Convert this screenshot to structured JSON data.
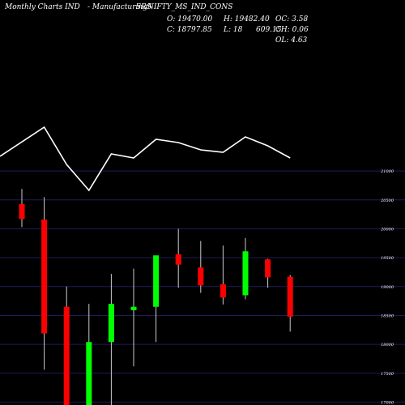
{
  "header": {
    "site": "Monthly Charts IND",
    "title": "- ManufacturingNIFTY_MS_IND_CONS",
    "overlay": "SRS",
    "open": "O: 19470.00",
    "high": "H: 19482.40",
    "close": "C: 18797.85",
    "low": "L: 18",
    "low_overlay": "609.15",
    "oc": "OC: 3.58",
    "ch": "CH: 0.06",
    "ol": "OL: 4.63"
  },
  "colors": {
    "background": "#000000",
    "up": "#00ff00",
    "down": "#ff0000",
    "grid": "#1c1c5a",
    "line": "#ffffff",
    "wick": "#cccccc"
  },
  "chart_data": [
    {
      "type": "line",
      "x": [
        1,
        2,
        3,
        4,
        5,
        6,
        7,
        8,
        9,
        10,
        11,
        12,
        13
      ],
      "values": [
        123,
        87,
        133,
        165,
        120,
        125,
        102,
        106,
        115,
        118,
        99,
        110,
        125
      ]
    },
    {
      "type": "candlestick",
      "yticks": [
        21000,
        20500,
        20000,
        19500,
        19000,
        18500,
        18000,
        17500,
        17000
      ],
      "ylim": [
        16950,
        21100
      ],
      "candles": [
        {
          "x": 1,
          "open": 20430,
          "high": 20690,
          "low": 20030,
          "close": 20170
        },
        {
          "x": 2,
          "open": 20160,
          "high": 20550,
          "low": 17560,
          "close": 18190
        },
        {
          "x": 3,
          "open": 18650,
          "high": 19000,
          "low": 16950,
          "close": 16950
        },
        {
          "x": 4,
          "open": 16950,
          "high": 18700,
          "low": 16950,
          "close": 18040
        },
        {
          "x": 5,
          "open": 18040,
          "high": 19220,
          "low": 16950,
          "close": 18700
        },
        {
          "x": 6,
          "open": 18590,
          "high": 19310,
          "low": 17620,
          "close": 18650
        },
        {
          "x": 7,
          "open": 18650,
          "high": 19520,
          "low": 18040,
          "close": 19540
        },
        {
          "x": 8,
          "open": 19560,
          "high": 20000,
          "low": 18980,
          "close": 19380
        },
        {
          "x": 9,
          "open": 19330,
          "high": 19790,
          "low": 18890,
          "close": 19020
        },
        {
          "x": 10,
          "open": 19040,
          "high": 19710,
          "low": 18690,
          "close": 18810
        },
        {
          "x": 11,
          "open": 18850,
          "high": 19840,
          "low": 18780,
          "close": 19610
        },
        {
          "x": 12,
          "open": 19470,
          "high": 19480,
          "low": 18980,
          "close": 19160
        },
        {
          "x": 13,
          "open": 19170,
          "high": 19200,
          "low": 18220,
          "close": 18480
        }
      ]
    }
  ]
}
